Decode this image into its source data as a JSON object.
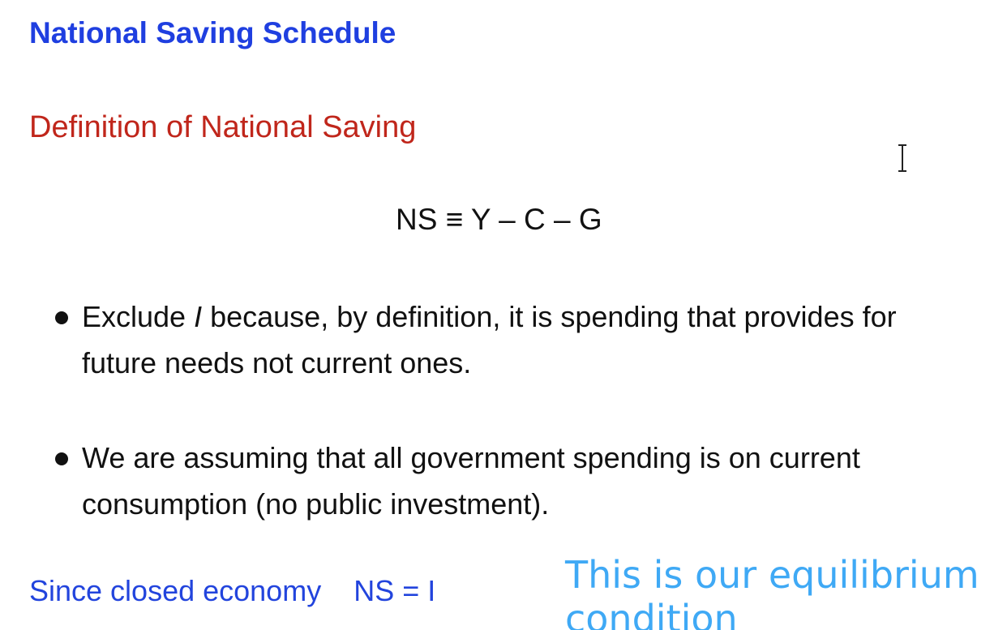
{
  "title": "National Saving Schedule",
  "subtitle": "Definition of National Saving",
  "equation": "NS ≡ Y – C – G",
  "bullets": {
    "b1": {
      "pre": "Exclude ",
      "italic": "I",
      "post": " because, by definition, it is spending that provides for future needs not current ones."
    },
    "b2": {
      "text": "We are assuming that all government spending is on current consumption (no public investment)."
    }
  },
  "footer": {
    "left_text": "Since closed economy",
    "equation": "NS = I"
  },
  "annotation": "This is our equilibrium condition",
  "icons": {
    "cursor": "text-cursor-icon"
  },
  "colors": {
    "title": "#1f3fe0",
    "subtitle": "#c0261b",
    "body": "#111111",
    "footer": "#2244dd",
    "annotation": "#3fa9f5"
  }
}
